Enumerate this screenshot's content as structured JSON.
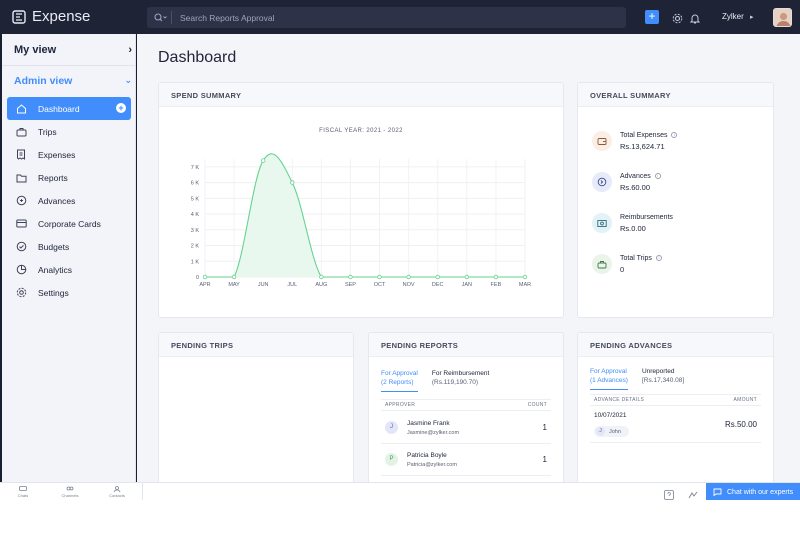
{
  "app": {
    "name": "Expense"
  },
  "search": {
    "placeholder": "Search Reports Approval"
  },
  "header": {
    "user_name": "Zylker"
  },
  "sidebar": {
    "my_view": "My view",
    "admin_view": "Admin view",
    "items": [
      {
        "label": "Dashboard",
        "icon": "home-icon",
        "active": true
      },
      {
        "label": "Trips",
        "icon": "briefcase-icon"
      },
      {
        "label": "Expenses",
        "icon": "receipt-icon"
      },
      {
        "label": "Reports",
        "icon": "folder-icon"
      },
      {
        "label": "Advances",
        "icon": "coin-icon"
      },
      {
        "label": "Corporate Cards",
        "icon": "card-icon"
      },
      {
        "label": "Budgets",
        "icon": "check-circle-icon"
      },
      {
        "label": "Analytics",
        "icon": "pie-icon"
      },
      {
        "label": "Settings",
        "icon": "gear-icon"
      }
    ]
  },
  "page": {
    "title": "Dashboard"
  },
  "spend_summary": {
    "title": "SPEND SUMMARY",
    "fiscal_year": "FISCAL YEAR: 2021 - 2022"
  },
  "chart_data": {
    "type": "area",
    "title": "FISCAL YEAR: 2021 - 2022",
    "categories": [
      "APR",
      "MAY",
      "JUN",
      "JUL",
      "AUG",
      "SEP",
      "OCT",
      "NOV",
      "DEC",
      "JAN",
      "FEB",
      "MAR"
    ],
    "y_ticks": [
      "0",
      "1 K",
      "2 K",
      "3 K",
      "4 K",
      "5 K",
      "6 K",
      "7 K"
    ],
    "ylim": [
      0,
      7500
    ],
    "series": [
      {
        "values": [
          0,
          0,
          7400,
          6000,
          0,
          0,
          0,
          0,
          0,
          0,
          0,
          0
        ]
      }
    ],
    "grid": true,
    "line_color": "#63d38e"
  },
  "overall_summary": {
    "title": "OVERALL SUMMARY",
    "items": [
      {
        "label": "Total Expenses",
        "value": "Rs.13,624.71",
        "icon": "wallet-icon",
        "color": "#fbeee4"
      },
      {
        "label": "Advances",
        "value": "Rs.60.00",
        "icon": "advance-icon",
        "color": "#e7eaf8"
      },
      {
        "label": "Reimbursements",
        "value": "Rs.0.00",
        "icon": "cash-icon",
        "color": "#e2f2f6"
      },
      {
        "label": "Total Trips",
        "value": "0",
        "icon": "suitcase-icon",
        "color": "#eaf4ea"
      }
    ]
  },
  "pending_trips": {
    "title": "PENDING TRIPS"
  },
  "pending_reports": {
    "title": "PENDING REPORTS",
    "tabs": [
      {
        "label": "For Approval",
        "sub": "(2 Reports)"
      },
      {
        "label": "For Reimbursement",
        "sub": "(Rs.119,190.70)"
      }
    ],
    "columns": [
      "APPROVER",
      "COUNT"
    ],
    "rows": [
      {
        "initial": "J",
        "name": "Jasmine Frank",
        "email": "Jasmine@zylker.com",
        "count": "1"
      },
      {
        "initial": "P",
        "name": "Patricia Boyle",
        "email": "Patricia@zylker.com",
        "count": "1"
      }
    ]
  },
  "pending_advances": {
    "title": "PENDING ADVANCES",
    "tabs": [
      {
        "label": "For Approval",
        "sub": "(1 Advances)"
      },
      {
        "label": "Unreported",
        "sub": "[Rs.17,340.08]"
      }
    ],
    "columns": [
      "ADVANCE DETAILS",
      "AMOUNT"
    ],
    "rows": [
      {
        "date": "10/07/2021",
        "name": "John",
        "amount": "Rs.50.00"
      }
    ]
  },
  "bottom_bar": {
    "items": [
      "Chats",
      "Channels",
      "Contacts"
    ],
    "chat_button": "Chat with our experts"
  },
  "colors": {
    "accent": "#408dfb",
    "topbar": "#1f2336"
  }
}
